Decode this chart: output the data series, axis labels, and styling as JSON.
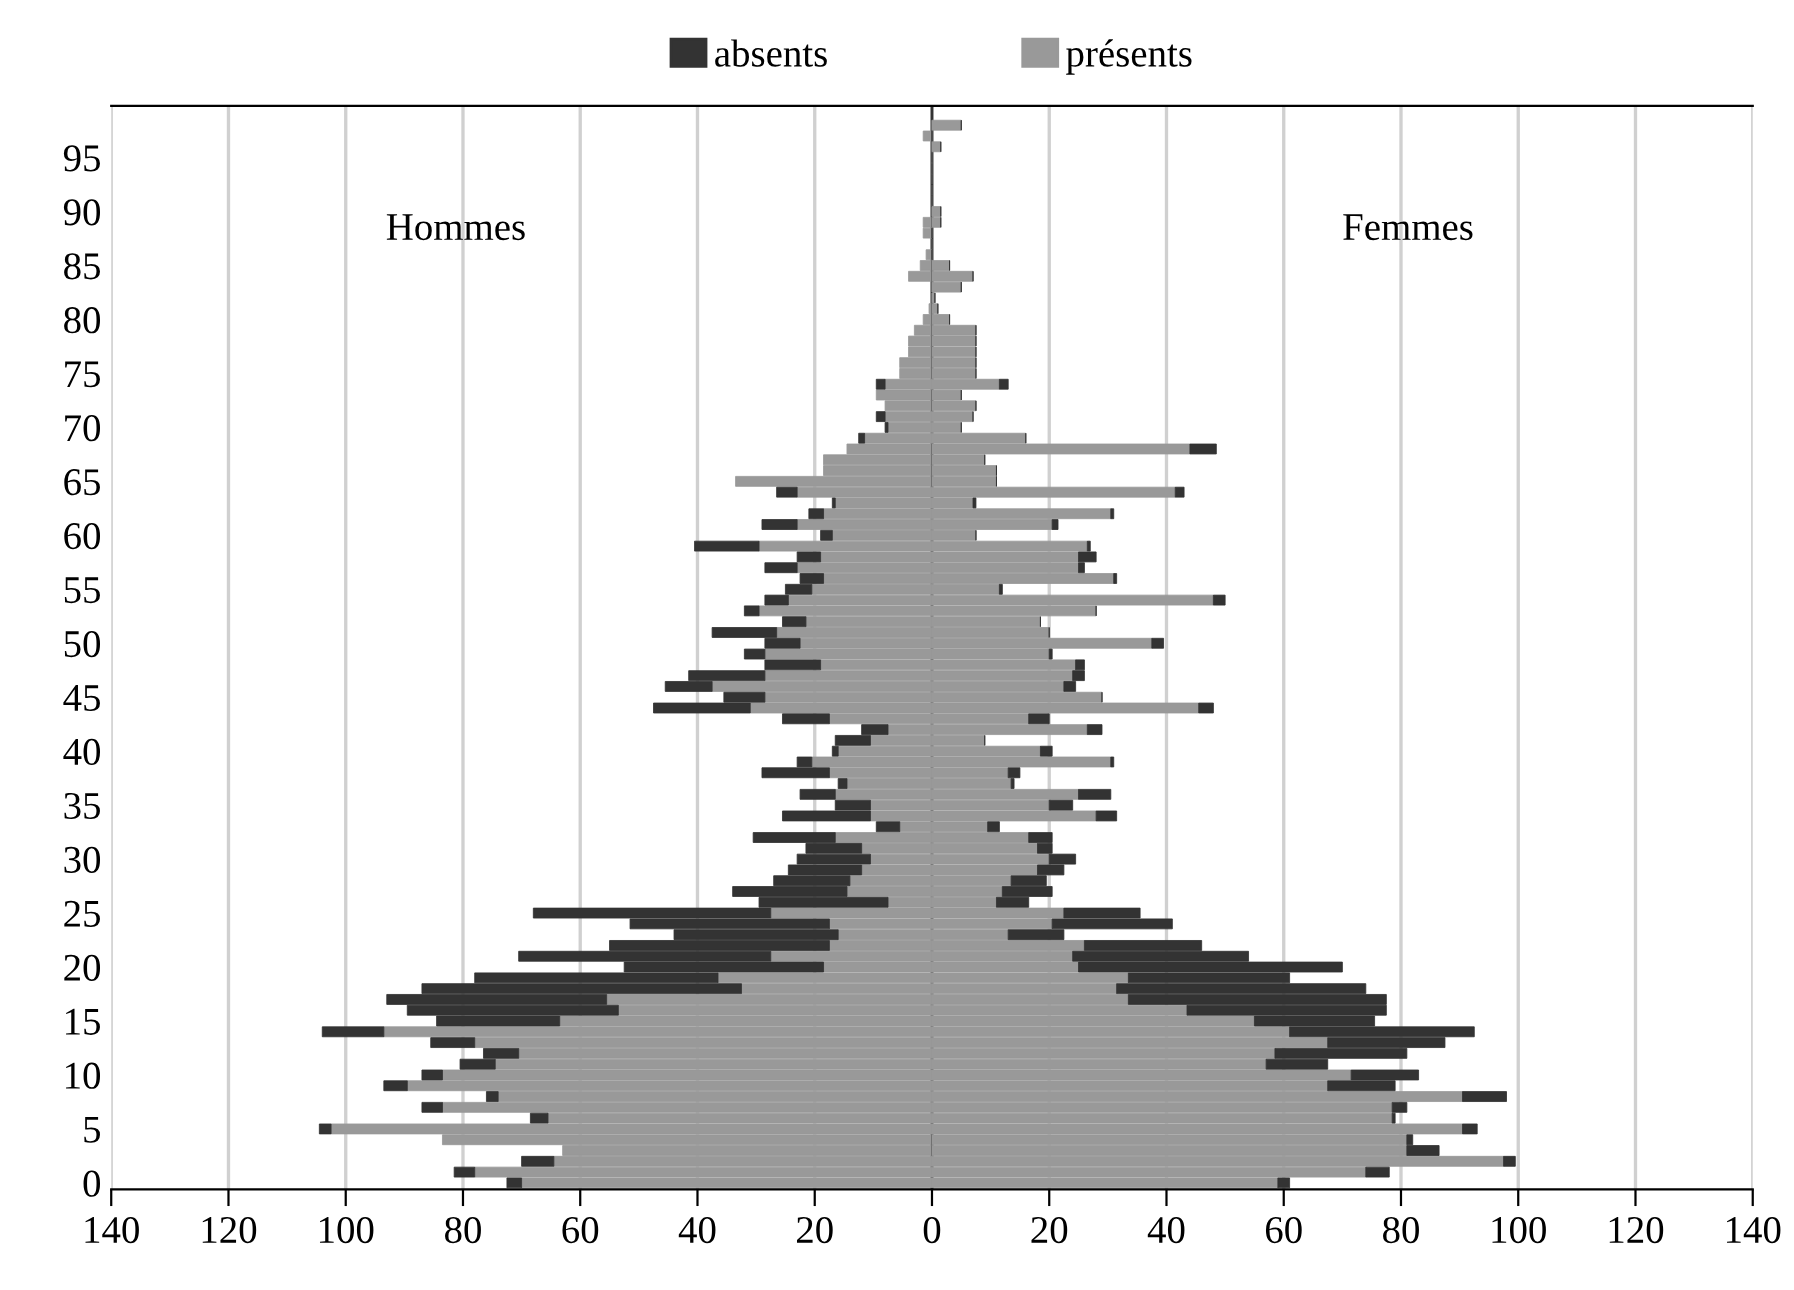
{
  "chart_data": {
    "type": "bar",
    "orientation": "horizontal",
    "stacked": true,
    "categories": [
      null,
      null,
      null,
      "95",
      null,
      null,
      null,
      null,
      "90",
      null,
      null,
      null,
      null,
      "85",
      null,
      null,
      null,
      null,
      "80",
      null,
      null,
      null,
      null,
      "75",
      null,
      null,
      null,
      null,
      "70",
      null,
      null,
      null,
      null,
      "65",
      null,
      null,
      null,
      null,
      "60",
      null,
      null,
      null,
      null,
      "55",
      null,
      null,
      null,
      null,
      "50",
      null,
      null,
      null,
      null,
      "45",
      null,
      null,
      null,
      null,
      "40",
      null,
      null,
      null,
      null,
      "35",
      null,
      null,
      null,
      null,
      "30",
      null,
      null,
      null,
      null,
      "25",
      null,
      null,
      null,
      null,
      "20",
      null,
      null,
      null,
      null,
      "15",
      null,
      null,
      null,
      null,
      "10",
      null,
      null,
      null,
      null,
      "5",
      null,
      null,
      null,
      null,
      "0"
    ],
    "series": [
      {
        "color": "#999999",
        "values": [
          0,
          -1.5,
          0,
          0,
          0,
          0,
          0,
          0,
          0,
          -1.5,
          -1.5,
          0,
          -1,
          -2,
          -4,
          0,
          0,
          -0.5,
          -1.5,
          -3,
          -4,
          -4,
          -5.5,
          -5.5,
          -8,
          -9.5,
          -8,
          -8,
          -7.5,
          -11.5,
          -14.5,
          -18.5,
          -18.5,
          -33.5,
          -23,
          -16.5,
          -18.5,
          -23,
          -17,
          -29.5,
          -19,
          -23,
          -18.5,
          -20.5,
          -24.5,
          -29.5,
          -21.5,
          -26.5,
          -22.5,
          -28.5,
          -19,
          -28.5,
          -37.5,
          -28.5,
          -31,
          -17.5,
          -7.5,
          -10.5,
          -16,
          -20.5,
          -17.5,
          -14.5,
          -16.5,
          -10.5,
          -10.5,
          -5.5,
          -16.5,
          -12,
          -10.5,
          -12,
          -14,
          -14.5,
          -7.5,
          -27.5,
          -17.5,
          -16,
          -17.5,
          -27.5,
          -18.5,
          -36.5,
          -32.5,
          -55.5,
          -53.5,
          -63.5,
          -93.5,
          -78,
          -70.5,
          -74.5,
          -83.5,
          -89.5,
          -74,
          -83.5,
          -65.5,
          -102.5,
          -83.5,
          -63,
          -64.5,
          -78,
          -70
        ]
      },
      {
        "name": "absents",
        "color": "#333333",
        "values": [
          0,
          0,
          0,
          0,
          0,
          0,
          0,
          0,
          0,
          0,
          0,
          0,
          0,
          0,
          0,
          0,
          0,
          0,
          0,
          0,
          0,
          0,
          0,
          0,
          -1.5,
          0,
          0,
          -1.5,
          -0.5,
          -1,
          0,
          0,
          0,
          0,
          -3.5,
          -0.5,
          -2.5,
          -6,
          -2,
          -11,
          -4,
          -5.5,
          -4,
          -4.5,
          -4,
          -2.5,
          -4,
          -11,
          -6,
          -3.5,
          -9.5,
          -13,
          -8,
          -7,
          -16.5,
          -8,
          -4.5,
          -6,
          -1,
          -2.5,
          -11.5,
          -1.5,
          -6,
          -6,
          -15,
          -4,
          -14,
          -9.5,
          -12.5,
          -12.5,
          -13,
          -19.5,
          -22,
          -40.5,
          -34,
          -28,
          -37.5,
          -43,
          -34,
          -41.5,
          -54.5,
          -37.5,
          -36,
          -21,
          -10.5,
          -7.5,
          -6,
          -6,
          -3.5,
          -4,
          -2,
          -3.5,
          -3,
          -2,
          0,
          0,
          -5.5,
          -3.5,
          -2.5
        ]
      },
      {
        "name": "présents",
        "color": "#999999",
        "values": [
          5,
          0,
          1.5,
          0,
          0,
          0,
          0,
          0,
          1.5,
          1.5,
          0,
          0,
          0,
          3,
          7,
          5,
          0.5,
          1,
          3,
          7.5,
          7.5,
          7.5,
          7.5,
          7.5,
          11.5,
          5,
          7.5,
          7,
          5,
          16,
          44,
          9,
          11,
          11,
          41.5,
          7,
          30.5,
          20.5,
          7.5,
          26.5,
          25,
          25,
          31,
          11.5,
          48,
          28,
          18.5,
          20,
          37.5,
          20,
          24.5,
          24,
          22.5,
          29,
          45.5,
          16.5,
          26.5,
          9,
          18.5,
          30.5,
          13,
          13.5,
          25,
          20,
          28,
          9.5,
          16.5,
          18,
          20,
          18,
          13.5,
          12,
          11,
          22.5,
          20.5,
          13,
          26,
          24,
          25,
          33.5,
          31.5,
          33.5,
          43.5,
          55,
          61,
          67.5,
          58.5,
          57,
          71.5,
          67.5,
          90.5,
          78.5,
          78.5,
          90.5,
          81,
          81,
          97.5,
          74,
          59
        ]
      },
      {
        "color": "#333333",
        "values": [
          0,
          0,
          0,
          0,
          0,
          0,
          0,
          0,
          0,
          0,
          0,
          0,
          0,
          0,
          0,
          0,
          0,
          0,
          0,
          0,
          0,
          0,
          0,
          0,
          1.5,
          0,
          0,
          0,
          0,
          0,
          4.5,
          0,
          0,
          0,
          1.5,
          0.5,
          0.5,
          1,
          0,
          0.5,
          3,
          1,
          0.5,
          0.5,
          2,
          0,
          0,
          0,
          2,
          0.5,
          1.5,
          2,
          2,
          0,
          2.5,
          3.5,
          2.5,
          0,
          2,
          0.5,
          2,
          0.5,
          5.5,
          4,
          3.5,
          2,
          4,
          2.5,
          4.5,
          4.5,
          6,
          8.5,
          5.5,
          13,
          20.5,
          9.5,
          20,
          30,
          45,
          27.5,
          42.5,
          44,
          34,
          20.5,
          31.5,
          20,
          22.5,
          10.5,
          11.5,
          11.5,
          7.5,
          2.5,
          0.5,
          2.5,
          1,
          5.5,
          2,
          4,
          2
        ]
      }
    ],
    "xlim": [
      -140,
      140
    ],
    "xticks": [
      {
        "value": -140,
        "label": "140"
      },
      {
        "value": -120,
        "label": "120"
      },
      {
        "value": -100,
        "label": "100"
      },
      {
        "value": -80,
        "label": "80"
      },
      {
        "value": -60,
        "label": "60"
      },
      {
        "value": -40,
        "label": "40"
      },
      {
        "value": -20,
        "label": "20"
      },
      0,
      20,
      40,
      60,
      80,
      100,
      120,
      140
    ],
    "ref_lines": [
      {
        "axis": "x",
        "value": 0,
        "color": "#333333"
      }
    ],
    "annotations": [
      "Hommes",
      "Femmes"
    ],
    "grid": "x",
    "legend": "top"
  }
}
